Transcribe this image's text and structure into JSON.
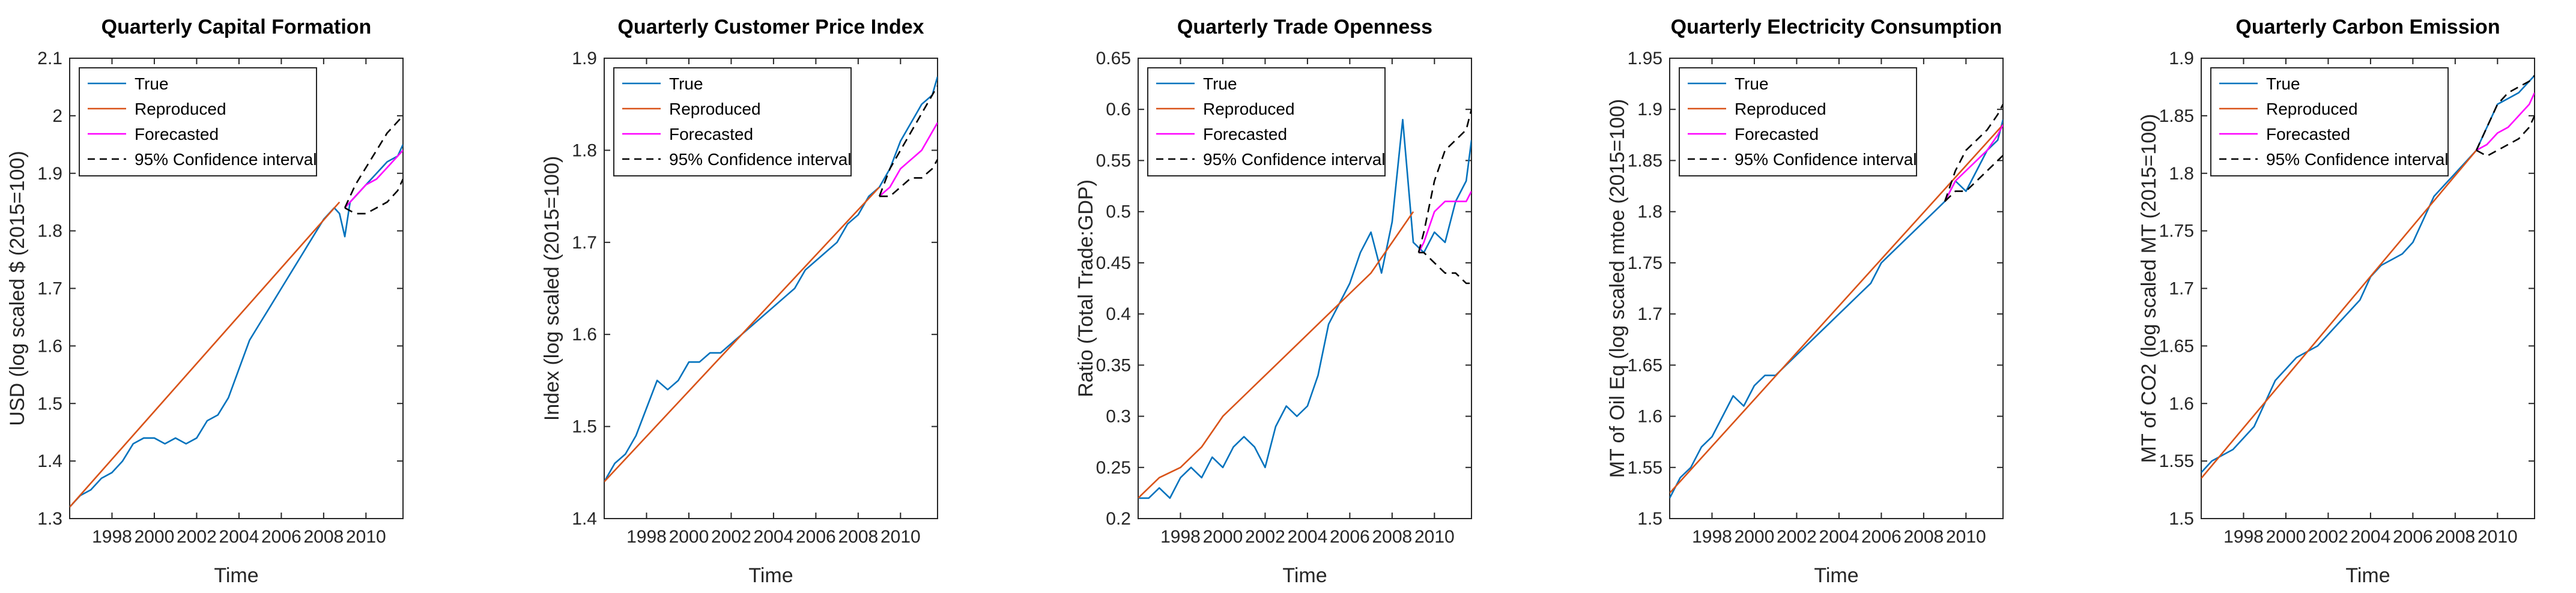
{
  "legend_labels": [
    "True",
    "Reproduced",
    "Forecasted",
    "95% Confidence interval"
  ],
  "colors": {
    "true": "#0072BD",
    "reproduced": "#D95319",
    "forecasted": "#FF00FF",
    "ci": "#000000",
    "axis": "#262626"
  },
  "chart_data": [
    {
      "type": "line",
      "title": "Quarterly Capital Formation",
      "xlabel": "Time",
      "ylabel": "USD (log scaled $ (2015=100)",
      "xlim": [
        1996,
        2011.75
      ],
      "ylim": [
        1.3,
        2.1
      ],
      "xticks": [
        1998,
        2000,
        2002,
        2004,
        2006,
        2008,
        2010
      ],
      "yticks": [
        1.3,
        1.4,
        1.5,
        1.6,
        1.7,
        1.8,
        1.9,
        2.0,
        2.1
      ],
      "ytick_labels": [
        "1.3",
        "1.4",
        "1.5",
        "1.6",
        "1.7",
        "1.8",
        "1.9",
        "2",
        "2.1"
      ],
      "series": [
        {
          "name": "True",
          "color": "#0072BD",
          "x": [
            1996,
            1996.5,
            1997,
            1997.5,
            1998,
            1998.5,
            1999,
            1999.5,
            2000,
            2000.5,
            2001,
            2001.5,
            2002,
            2002.5,
            2003,
            2003.5,
            2004,
            2004.5,
            2005,
            2005.5,
            2006,
            2006.5,
            2007,
            2007.5,
            2008,
            2008.5,
            2008.75,
            2009,
            2009.25,
            2009.5,
            2010,
            2010.5,
            2011,
            2011.5,
            2011.75
          ],
          "y": [
            1.32,
            1.34,
            1.35,
            1.37,
            1.38,
            1.4,
            1.43,
            1.44,
            1.44,
            1.43,
            1.44,
            1.43,
            1.44,
            1.47,
            1.48,
            1.51,
            1.56,
            1.61,
            1.64,
            1.67,
            1.7,
            1.73,
            1.76,
            1.79,
            1.82,
            1.84,
            1.83,
            1.79,
            1.85,
            1.86,
            1.88,
            1.9,
            1.92,
            1.93,
            1.95
          ]
        },
        {
          "name": "Reproduced",
          "color": "#D95319",
          "x": [
            1996,
            2008.75
          ],
          "y": [
            1.32,
            1.85
          ]
        },
        {
          "name": "Forecasted",
          "color": "#FF00FF",
          "x": [
            2009,
            2009.5,
            2010,
            2010.5,
            2011,
            2011.5,
            2011.75
          ],
          "y": [
            1.84,
            1.86,
            1.88,
            1.89,
            1.91,
            1.93,
            1.94
          ]
        },
        {
          "name": "95% CI upper",
          "color": "#000000",
          "dashed": true,
          "x": [
            2009,
            2009.5,
            2010,
            2010.5,
            2011,
            2011.5,
            2011.75
          ],
          "y": [
            1.84,
            1.88,
            1.91,
            1.94,
            1.97,
            1.99,
            2.0
          ]
        },
        {
          "name": "95% CI lower",
          "color": "#000000",
          "dashed": true,
          "x": [
            2009,
            2009.5,
            2010,
            2010.5,
            2011,
            2011.5,
            2011.75
          ],
          "y": [
            1.84,
            1.83,
            1.83,
            1.84,
            1.85,
            1.87,
            1.89
          ]
        }
      ]
    },
    {
      "type": "line",
      "title": "Quarterly Customer Price Index",
      "xlabel": "Time",
      "ylabel": "Index (log scaled (2015=100)",
      "xlim": [
        1996,
        2011.75
      ],
      "ylim": [
        1.4,
        1.9
      ],
      "xticks": [
        1998,
        2000,
        2002,
        2004,
        2006,
        2008,
        2010
      ],
      "yticks": [
        1.4,
        1.5,
        1.6,
        1.7,
        1.8,
        1.9
      ],
      "ytick_labels": [
        "1.4",
        "1.5",
        "1.6",
        "1.7",
        "1.8",
        "1.9"
      ],
      "series": [
        {
          "name": "True",
          "color": "#0072BD",
          "x": [
            1996,
            1996.5,
            1997,
            1997.5,
            1998,
            1998.5,
            1999,
            1999.5,
            2000,
            2000.5,
            2001,
            2001.5,
            2002,
            2002.5,
            2003,
            2003.5,
            2004,
            2004.5,
            2005,
            2005.5,
            2006,
            2006.5,
            2007,
            2007.5,
            2008,
            2008.5,
            2009,
            2009.5,
            2010,
            2010.5,
            2011,
            2011.5,
            2011.75
          ],
          "y": [
            1.44,
            1.46,
            1.47,
            1.49,
            1.52,
            1.55,
            1.54,
            1.55,
            1.57,
            1.57,
            1.58,
            1.58,
            1.59,
            1.6,
            1.61,
            1.62,
            1.63,
            1.64,
            1.65,
            1.67,
            1.68,
            1.69,
            1.7,
            1.72,
            1.73,
            1.75,
            1.76,
            1.78,
            1.81,
            1.83,
            1.85,
            1.86,
            1.88
          ]
        },
        {
          "name": "Reproduced",
          "color": "#D95319",
          "x": [
            1996,
            2009
          ],
          "y": [
            1.44,
            1.76
          ]
        },
        {
          "name": "Forecasted",
          "color": "#FF00FF",
          "x": [
            2009,
            2009.5,
            2010,
            2010.5,
            2011,
            2011.5,
            2011.75
          ],
          "y": [
            1.75,
            1.76,
            1.78,
            1.79,
            1.8,
            1.82,
            1.83
          ]
        },
        {
          "name": "95% CI upper",
          "color": "#000000",
          "dashed": true,
          "x": [
            2009,
            2009.5,
            2010,
            2010.5,
            2011,
            2011.5,
            2011.75
          ],
          "y": [
            1.75,
            1.78,
            1.8,
            1.82,
            1.84,
            1.86,
            1.87
          ]
        },
        {
          "name": "95% CI lower",
          "color": "#000000",
          "dashed": true,
          "x": [
            2009,
            2009.5,
            2010,
            2010.5,
            2011,
            2011.5,
            2011.75
          ],
          "y": [
            1.75,
            1.75,
            1.76,
            1.77,
            1.77,
            1.78,
            1.79
          ]
        }
      ]
    },
    {
      "type": "line",
      "title": "Quarterly Trade Openness",
      "xlabel": "Time",
      "ylabel": "Ratio (Total Trade:GDP)",
      "xlim": [
        1996,
        2011.75
      ],
      "ylim": [
        0.2,
        0.65
      ],
      "xticks": [
        1998,
        2000,
        2002,
        2004,
        2006,
        2008,
        2010
      ],
      "yticks": [
        0.2,
        0.25,
        0.3,
        0.35,
        0.4,
        0.45,
        0.5,
        0.55,
        0.6,
        0.65
      ],
      "ytick_labels": [
        "0.2",
        "0.25",
        "0.3",
        "0.35",
        "0.4",
        "0.45",
        "0.5",
        "0.55",
        "0.6",
        "0.65"
      ],
      "series": [
        {
          "name": "True",
          "color": "#0072BD",
          "x": [
            1996,
            1996.5,
            1997,
            1997.5,
            1998,
            1998.5,
            1999,
            1999.5,
            2000,
            2000.5,
            2001,
            2001.5,
            2002,
            2002.5,
            2003,
            2003.5,
            2004,
            2004.5,
            2005,
            2005.5,
            2006,
            2006.5,
            2007,
            2007.5,
            2008,
            2008.5,
            2009,
            2009.5,
            2010,
            2010.5,
            2011,
            2011.5,
            2011.75
          ],
          "y": [
            0.22,
            0.22,
            0.23,
            0.22,
            0.24,
            0.25,
            0.24,
            0.26,
            0.25,
            0.27,
            0.28,
            0.27,
            0.25,
            0.29,
            0.31,
            0.3,
            0.31,
            0.34,
            0.39,
            0.41,
            0.43,
            0.46,
            0.48,
            0.44,
            0.49,
            0.59,
            0.47,
            0.46,
            0.48,
            0.47,
            0.51,
            0.53,
            0.57
          ]
        },
        {
          "name": "Reproduced",
          "color": "#D95319",
          "x": [
            1996,
            1997,
            1998,
            1999,
            2000,
            2001,
            2002,
            2003,
            2004,
            2005,
            2006,
            2007,
            2008,
            2009
          ],
          "y": [
            0.22,
            0.24,
            0.25,
            0.27,
            0.3,
            0.32,
            0.34,
            0.36,
            0.38,
            0.4,
            0.42,
            0.44,
            0.47,
            0.5
          ]
        },
        {
          "name": "Forecasted",
          "color": "#FF00FF",
          "x": [
            2009.25,
            2009.5,
            2010,
            2010.5,
            2011,
            2011.5,
            2011.75
          ],
          "y": [
            0.46,
            0.47,
            0.5,
            0.51,
            0.51,
            0.51,
            0.52
          ]
        },
        {
          "name": "95% CI upper",
          "color": "#000000",
          "dashed": true,
          "x": [
            2009.25,
            2009.5,
            2010,
            2010.5,
            2011,
            2011.5,
            2011.75
          ],
          "y": [
            0.46,
            0.48,
            0.53,
            0.56,
            0.57,
            0.58,
            0.6
          ]
        },
        {
          "name": "95% CI lower",
          "color": "#000000",
          "dashed": true,
          "x": [
            2009.25,
            2009.5,
            2010,
            2010.5,
            2011,
            2011.5,
            2011.75
          ],
          "y": [
            0.46,
            0.46,
            0.45,
            0.44,
            0.44,
            0.43,
            0.43
          ]
        }
      ]
    },
    {
      "type": "line",
      "title": "Quarterly Electricity Consumption",
      "xlabel": "Time",
      "ylabel": "MT of Oil Eq (log scaled mtoe (2015=100)",
      "xlim": [
        1996,
        2011.75
      ],
      "ylim": [
        1.5,
        1.95
      ],
      "xticks": [
        1998,
        2000,
        2002,
        2004,
        2006,
        2008,
        2010
      ],
      "yticks": [
        1.5,
        1.55,
        1.6,
        1.65,
        1.7,
        1.75,
        1.8,
        1.85,
        1.9,
        1.95
      ],
      "ytick_labels": [
        "1.5",
        "1.55",
        "1.6",
        "1.65",
        "1.7",
        "1.75",
        "1.8",
        "1.85",
        "1.9",
        "1.95"
      ],
      "series": [
        {
          "name": "True",
          "color": "#0072BD",
          "x": [
            1996,
            1996.5,
            1997,
            1997.5,
            1998,
            1998.5,
            1999,
            1999.5,
            2000,
            2000.5,
            2001,
            2001.5,
            2002,
            2002.5,
            2003,
            2003.5,
            2004,
            2004.5,
            2005,
            2005.5,
            2006,
            2006.5,
            2007,
            2007.5,
            2008,
            2008.5,
            2009,
            2009.5,
            2010,
            2010.5,
            2011,
            2011.5,
            2011.75
          ],
          "y": [
            1.52,
            1.54,
            1.55,
            1.57,
            1.58,
            1.6,
            1.62,
            1.61,
            1.63,
            1.64,
            1.64,
            1.65,
            1.66,
            1.67,
            1.68,
            1.69,
            1.7,
            1.71,
            1.72,
            1.73,
            1.75,
            1.76,
            1.77,
            1.78,
            1.79,
            1.8,
            1.81,
            1.83,
            1.82,
            1.84,
            1.86,
            1.87,
            1.89
          ]
        },
        {
          "name": "Reproduced",
          "color": "#D95319",
          "x": [
            1996,
            2011.75
          ],
          "y": [
            1.525,
            1.885
          ]
        },
        {
          "name": "Forecasted",
          "color": "#FF00FF",
          "x": [
            2009,
            2009.5,
            2010,
            2010.5,
            2011,
            2011.5,
            2011.75
          ],
          "y": [
            1.81,
            1.83,
            1.84,
            1.85,
            1.86,
            1.875,
            1.885
          ]
        },
        {
          "name": "95% CI upper",
          "color": "#000000",
          "dashed": true,
          "x": [
            2009,
            2009.5,
            2010,
            2010.5,
            2011,
            2011.5,
            2011.75
          ],
          "y": [
            1.81,
            1.84,
            1.86,
            1.87,
            1.88,
            1.895,
            1.905
          ]
        },
        {
          "name": "95% CI lower",
          "color": "#000000",
          "dashed": true,
          "x": [
            2009,
            2009.5,
            2010,
            2010.5,
            2011,
            2011.5,
            2011.75
          ],
          "y": [
            1.81,
            1.82,
            1.82,
            1.83,
            1.84,
            1.85,
            1.855
          ]
        }
      ]
    },
    {
      "type": "line",
      "title": "Quarterly Carbon Emission",
      "xlabel": "Time",
      "ylabel": "MT of CO2 (log scaled MT (2015=100)",
      "xlim": [
        1996,
        2011.75
      ],
      "ylim": [
        1.5,
        1.9
      ],
      "xticks": [
        1998,
        2000,
        2002,
        2004,
        2006,
        2008,
        2010
      ],
      "yticks": [
        1.5,
        1.55,
        1.6,
        1.65,
        1.7,
        1.75,
        1.8,
        1.85,
        1.9
      ],
      "ytick_labels": [
        "1.5",
        "1.55",
        "1.6",
        "1.65",
        "1.7",
        "1.75",
        "1.8",
        "1.85",
        "1.9"
      ],
      "series": [
        {
          "name": "True",
          "color": "#0072BD",
          "x": [
            1996,
            1996.5,
            1997,
            1997.5,
            1998,
            1998.5,
            1999,
            1999.5,
            2000,
            2000.5,
            2001,
            2001.5,
            2002,
            2002.5,
            2003,
            2003.5,
            2004,
            2004.5,
            2005,
            2005.5,
            2006,
            2006.5,
            2007,
            2007.5,
            2008,
            2008.5,
            2009,
            2009.5,
            2010,
            2010.5,
            2011,
            2011.5,
            2011.75
          ],
          "y": [
            1.54,
            1.55,
            1.555,
            1.56,
            1.57,
            1.58,
            1.6,
            1.62,
            1.63,
            1.64,
            1.645,
            1.65,
            1.66,
            1.67,
            1.68,
            1.69,
            1.71,
            1.72,
            1.725,
            1.73,
            1.74,
            1.76,
            1.78,
            1.79,
            1.8,
            1.81,
            1.82,
            1.84,
            1.86,
            1.865,
            1.87,
            1.88,
            1.885
          ]
        },
        {
          "name": "Reproduced",
          "color": "#D95319",
          "x": [
            1996,
            2009
          ],
          "y": [
            1.535,
            1.82
          ]
        },
        {
          "name": "Forecasted",
          "color": "#FF00FF",
          "x": [
            2009,
            2009.5,
            2010,
            2010.5,
            2011,
            2011.5,
            2011.75
          ],
          "y": [
            1.82,
            1.825,
            1.835,
            1.84,
            1.85,
            1.86,
            1.87
          ]
        },
        {
          "name": "95% CI upper",
          "color": "#000000",
          "dashed": true,
          "x": [
            2009,
            2009.5,
            2010,
            2010.5,
            2011,
            2011.5,
            2011.75
          ],
          "y": [
            1.82,
            1.84,
            1.86,
            1.87,
            1.875,
            1.88,
            1.885
          ]
        },
        {
          "name": "95% CI lower",
          "color": "#000000",
          "dashed": true,
          "x": [
            2009,
            2009.5,
            2010,
            2010.5,
            2011,
            2011.5,
            2011.75
          ],
          "y": [
            1.82,
            1.815,
            1.82,
            1.825,
            1.83,
            1.84,
            1.85
          ]
        }
      ]
    }
  ]
}
